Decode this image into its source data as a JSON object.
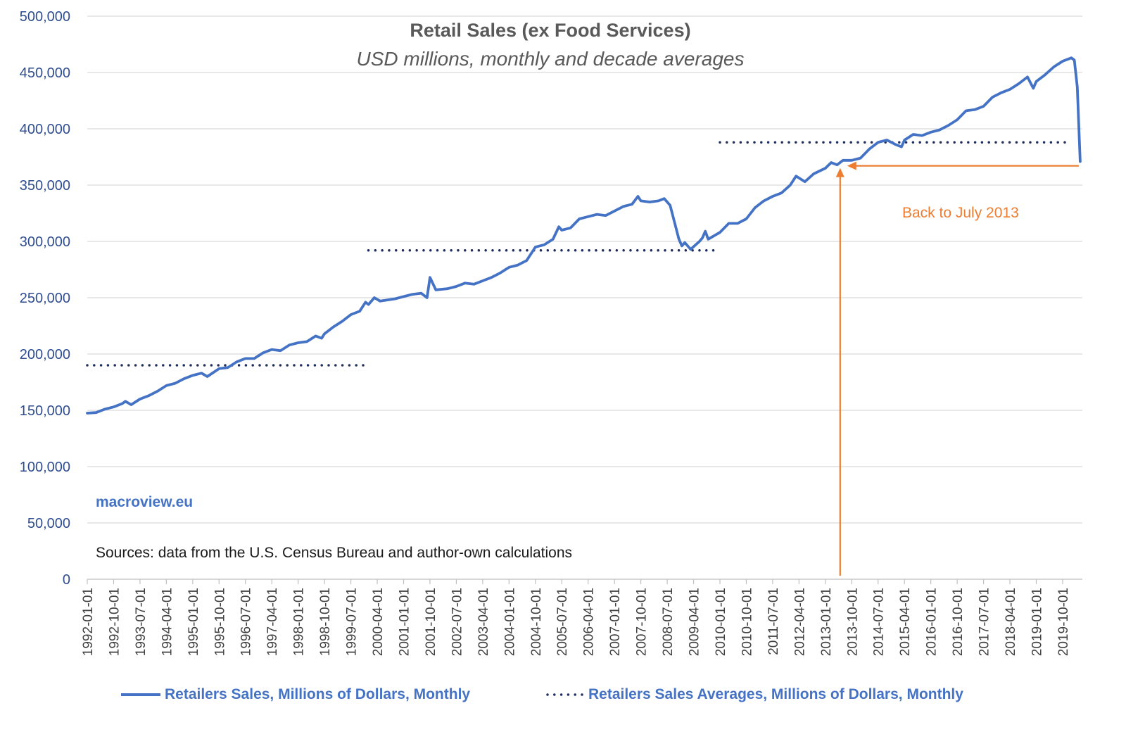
{
  "chart_data": {
    "type": "line",
    "title": "Retail Sales (ex Food Services)",
    "subtitle": "USD millions, monthly and decade averages",
    "ylim": [
      0,
      500000
    ],
    "yticks": [
      "0",
      "50,000",
      "100,000",
      "150,000",
      "200,000",
      "250,000",
      "300,000",
      "350,000",
      "400,000",
      "450,000",
      "500,000"
    ],
    "ytick_values": [
      0,
      50000,
      100000,
      150000,
      200000,
      250000,
      300000,
      350000,
      400000,
      450000,
      500000
    ],
    "xlim": [
      "1992-01-01",
      "2020-04-01"
    ],
    "xticks": [
      "1992-01-01",
      "1992-10-01",
      "1993-07-01",
      "1994-04-01",
      "1995-01-01",
      "1995-10-01",
      "1996-07-01",
      "1997-04-01",
      "1998-01-01",
      "1998-10-01",
      "1999-07-01",
      "2000-04-01",
      "2001-01-01",
      "2001-10-01",
      "2002-07-01",
      "2003-04-01",
      "2004-01-01",
      "2004-10-01",
      "2005-07-01",
      "2006-04-01",
      "2007-01-01",
      "2007-10-01",
      "2008-07-01",
      "2009-04-01",
      "2010-01-01",
      "2010-10-01",
      "2011-07-01",
      "2012-04-01",
      "2013-01-01",
      "2013-10-01",
      "2014-07-01",
      "2015-04-01",
      "2016-01-01",
      "2016-10-01",
      "2017-07-01",
      "2018-04-01",
      "2019-01-01",
      "2019-10-01"
    ],
    "grid": true,
    "legend_placement": "bottom",
    "colors": {
      "monthly": "#4472C4",
      "averages": "#1F2D5C",
      "annotation": "#ED7D31"
    },
    "series": [
      {
        "name": "Retailers Sales, Millions of Dollars, Monthly",
        "style": "solid",
        "points": [
          [
            "1992-01",
            147500
          ],
          [
            "1992-04",
            148000
          ],
          [
            "1992-07",
            151000
          ],
          [
            "1992-10",
            153000
          ],
          [
            "1993-01",
            156000
          ],
          [
            "1993-02",
            158000
          ],
          [
            "1993-04",
            155000
          ],
          [
            "1993-07",
            160000
          ],
          [
            "1993-10",
            163000
          ],
          [
            "1994-01",
            167000
          ],
          [
            "1994-04",
            172000
          ],
          [
            "1994-07",
            174000
          ],
          [
            "1994-10",
            178000
          ],
          [
            "1995-01",
            181000
          ],
          [
            "1995-04",
            183000
          ],
          [
            "1995-06",
            180000
          ],
          [
            "1995-10",
            187000
          ],
          [
            "1996-01",
            188000
          ],
          [
            "1996-04",
            193000
          ],
          [
            "1996-07",
            196000
          ],
          [
            "1996-10",
            196000
          ],
          [
            "1997-01",
            201000
          ],
          [
            "1997-04",
            204000
          ],
          [
            "1997-07",
            203000
          ],
          [
            "1997-10",
            208000
          ],
          [
            "1998-01",
            210000
          ],
          [
            "1998-04",
            211000
          ],
          [
            "1998-07",
            216000
          ],
          [
            "1998-09",
            214000
          ],
          [
            "1998-10",
            218000
          ],
          [
            "1999-01",
            224000
          ],
          [
            "1999-04",
            229000
          ],
          [
            "1999-07",
            235000
          ],
          [
            "1999-10",
            238000
          ],
          [
            "1999-12",
            246000
          ],
          [
            "2000-01",
            244000
          ],
          [
            "2000-03",
            250000
          ],
          [
            "2000-05",
            247000
          ],
          [
            "2000-10",
            249000
          ],
          [
            "2001-01",
            251000
          ],
          [
            "2001-04",
            253000
          ],
          [
            "2001-07",
            254000
          ],
          [
            "2001-09",
            250000
          ],
          [
            "2001-10",
            268000
          ],
          [
            "2001-12",
            257000
          ],
          [
            "2002-04",
            258000
          ],
          [
            "2002-07",
            260000
          ],
          [
            "2002-10",
            263000
          ],
          [
            "2003-01",
            262000
          ],
          [
            "2003-04",
            265000
          ],
          [
            "2003-07",
            268000
          ],
          [
            "2003-10",
            272000
          ],
          [
            "2004-01",
            277000
          ],
          [
            "2004-04",
            279000
          ],
          [
            "2004-07",
            283000
          ],
          [
            "2004-10",
            295000
          ],
          [
            "2005-01",
            297000
          ],
          [
            "2005-04",
            302000
          ],
          [
            "2005-06",
            313000
          ],
          [
            "2005-07",
            310000
          ],
          [
            "2005-10",
            312000
          ],
          [
            "2006-01",
            320000
          ],
          [
            "2006-04",
            322000
          ],
          [
            "2006-07",
            324000
          ],
          [
            "2006-10",
            323000
          ],
          [
            "2007-01",
            327000
          ],
          [
            "2007-04",
            331000
          ],
          [
            "2007-07",
            333000
          ],
          [
            "2007-09",
            340000
          ],
          [
            "2007-10",
            336000
          ],
          [
            "2008-01",
            335000
          ],
          [
            "2008-04",
            336000
          ],
          [
            "2008-06",
            338000
          ],
          [
            "2008-08",
            332000
          ],
          [
            "2008-09",
            322000
          ],
          [
            "2008-11",
            302000
          ],
          [
            "2008-12",
            296000
          ],
          [
            "2009-01",
            299000
          ],
          [
            "2009-03",
            293000
          ],
          [
            "2009-06",
            300000
          ],
          [
            "2009-07",
            303000
          ],
          [
            "2009-08",
            309000
          ],
          [
            "2009-09",
            302000
          ],
          [
            "2010-01",
            308000
          ],
          [
            "2010-04",
            316000
          ],
          [
            "2010-07",
            316000
          ],
          [
            "2010-10",
            320000
          ],
          [
            "2011-01",
            330000
          ],
          [
            "2011-04",
            336000
          ],
          [
            "2011-07",
            340000
          ],
          [
            "2011-10",
            343000
          ],
          [
            "2012-01",
            350000
          ],
          [
            "2012-03",
            358000
          ],
          [
            "2012-06",
            353000
          ],
          [
            "2012-09",
            360000
          ],
          [
            "2013-01",
            365000
          ],
          [
            "2013-03",
            370000
          ],
          [
            "2013-05",
            368000
          ],
          [
            "2013-07",
            372000
          ],
          [
            "2013-10",
            372000
          ],
          [
            "2014-01",
            374000
          ],
          [
            "2014-04",
            382000
          ],
          [
            "2014-07",
            388000
          ],
          [
            "2014-10",
            390000
          ],
          [
            "2015-01",
            386000
          ],
          [
            "2015-03",
            384000
          ],
          [
            "2015-04",
            390000
          ],
          [
            "2015-07",
            395000
          ],
          [
            "2015-10",
            394000
          ],
          [
            "2016-01",
            397000
          ],
          [
            "2016-04",
            399000
          ],
          [
            "2016-07",
            403000
          ],
          [
            "2016-10",
            408000
          ],
          [
            "2017-01",
            416000
          ],
          [
            "2017-04",
            417000
          ],
          [
            "2017-07",
            420000
          ],
          [
            "2017-10",
            428000
          ],
          [
            "2018-01",
            432000
          ],
          [
            "2018-04",
            435000
          ],
          [
            "2018-07",
            440000
          ],
          [
            "2018-10",
            446000
          ],
          [
            "2018-12",
            436000
          ],
          [
            "2019-01",
            442000
          ],
          [
            "2019-04",
            448000
          ],
          [
            "2019-07",
            455000
          ],
          [
            "2019-10",
            460000
          ],
          [
            "2020-01",
            463000
          ],
          [
            "2020-02",
            461000
          ],
          [
            "2020-03",
            437000
          ],
          [
            "2020-04",
            371000
          ]
        ]
      },
      {
        "name": "Retailers Sales Averages, Millions of Dollars, Monthly",
        "style": "dotted",
        "segments": [
          {
            "from": "1992-01",
            "to": "1999-12",
            "value": 190000
          },
          {
            "from": "2000-01",
            "to": "2009-12",
            "value": 292000
          },
          {
            "from": "2010-01",
            "to": "2019-12",
            "value": 388000
          }
        ]
      }
    ],
    "annotations": [
      {
        "text": "Back to July 2013",
        "date": "2013-07",
        "value": 369000
      }
    ]
  },
  "texts": {
    "brand": "macroview.eu",
    "source": "Sources: data from the U.S. Census Bureau and author-own calculations"
  }
}
